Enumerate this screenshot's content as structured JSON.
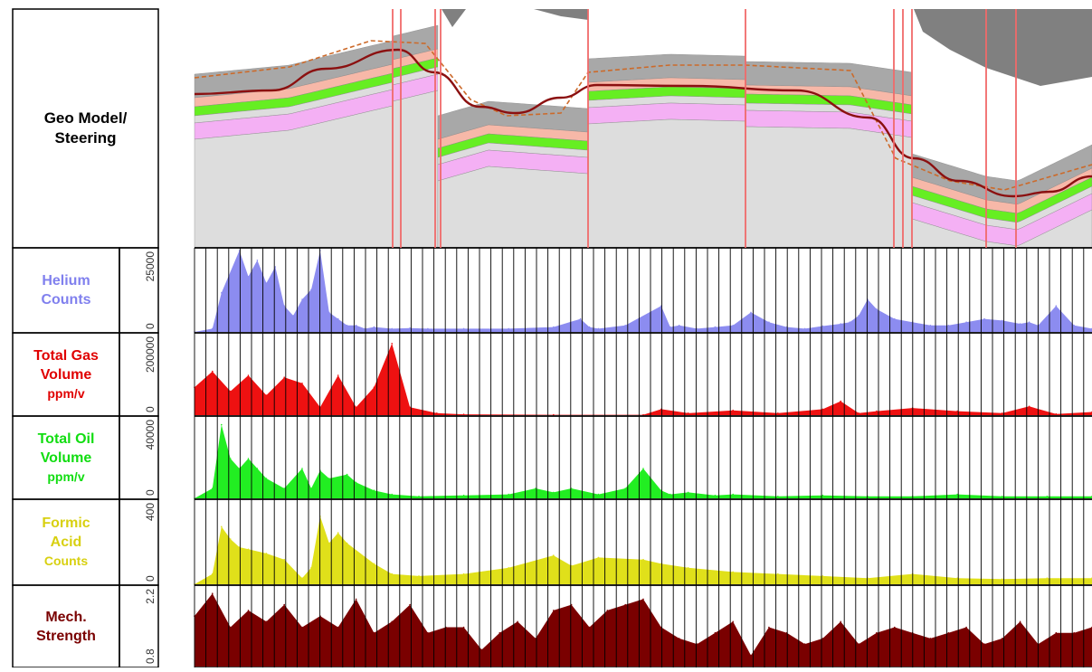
{
  "tracks": [
    {
      "id": "geo",
      "label_lines": [
        "Geo Model/",
        "Steering"
      ],
      "label_color": "#000000"
    },
    {
      "id": "helium",
      "label_lines": [
        "Helium",
        "Counts"
      ],
      "label_color": "#8080ee",
      "scale_max": "25000",
      "scale_min": "0",
      "fill": "#8c8cf0"
    },
    {
      "id": "gas",
      "label_lines": [
        "Total Gas",
        "Volume",
        "ppm/v"
      ],
      "label_color": "#e00000",
      "scale_max": "200000",
      "scale_min": "0",
      "fill": "#ee1111"
    },
    {
      "id": "oil",
      "label_lines": [
        "Total Oil",
        "Volume",
        "ppm/v"
      ],
      "label_color": "#11dd11",
      "scale_max": "40000",
      "scale_min": "0",
      "fill": "#22ee22"
    },
    {
      "id": "formic",
      "label_lines": [
        "Formic",
        "Acid",
        "Counts"
      ],
      "label_color": "#d8d010",
      "scale_max": "400",
      "scale_min": "0",
      "fill": "#e0e01a"
    },
    {
      "id": "mech",
      "label_lines": [
        "Mech.",
        "Strength"
      ],
      "label_color": "#7a0000",
      "scale_max": "2.2",
      "scale_min": "0.8",
      "fill": "#7a0000"
    }
  ],
  "colors": {
    "fault_line": "#f06a6a",
    "grid": "#000000",
    "layer_dark": "#a8a8a8",
    "layer_light": "#dddddd",
    "layer_pink": "#f4b0f4",
    "layer_green": "#66ee22",
    "layer_salmon": "#f7b8a8",
    "cap_dark": "#808080",
    "wellbore": "#8b1010",
    "plan": "#cc6a2a"
  },
  "chart_data": [
    {
      "type": "area",
      "title": "Helium Counts",
      "x": [
        0,
        0.02,
        0.03,
        0.05,
        0.06,
        0.07,
        0.08,
        0.09,
        0.1,
        0.11,
        0.12,
        0.13,
        0.14,
        0.15,
        0.16,
        0.17,
        0.18,
        0.19,
        0.2,
        0.22,
        0.24,
        0.26,
        0.3,
        0.35,
        0.4,
        0.43,
        0.44,
        0.45,
        0.48,
        0.52,
        0.53,
        0.54,
        0.56,
        0.58,
        0.6,
        0.62,
        0.64,
        0.66,
        0.68,
        0.7,
        0.72,
        0.73,
        0.74,
        0.75,
        0.76,
        0.78,
        0.8,
        0.82,
        0.84,
        0.86,
        0.88,
        0.9,
        0.92,
        0.93,
        0.94,
        0.96,
        0.98,
        1.0
      ],
      "y": [
        0,
        1000,
        12000,
        25000,
        17000,
        22000,
        15000,
        20000,
        8000,
        5000,
        10000,
        13000,
        25000,
        6000,
        4000,
        2000,
        2000,
        1000,
        1500,
        1000,
        1200,
        1000,
        1000,
        1000,
        1500,
        4000,
        1500,
        1000,
        2000,
        8000,
        1500,
        2000,
        1000,
        1500,
        2000,
        6000,
        3000,
        1500,
        1000,
        1800,
        2500,
        3000,
        5000,
        10000,
        7000,
        4000,
        3000,
        2000,
        2000,
        3000,
        4000,
        3500,
        2500,
        3000,
        2000,
        8000,
        2000,
        1000
      ],
      "ylim": [
        0,
        25000
      ]
    },
    {
      "type": "area",
      "title": "Total Gas Volume ppm/v",
      "x": [
        0,
        0.02,
        0.04,
        0.06,
        0.08,
        0.1,
        0.12,
        0.14,
        0.16,
        0.18,
        0.2,
        0.22,
        0.24,
        0.27,
        0.3,
        0.4,
        0.5,
        0.52,
        0.55,
        0.6,
        0.65,
        0.7,
        0.72,
        0.74,
        0.76,
        0.8,
        0.85,
        0.9,
        0.93,
        0.96,
        1.0
      ],
      "y": [
        70000,
        110000,
        60000,
        100000,
        50000,
        95000,
        80000,
        20000,
        100000,
        20000,
        70000,
        180000,
        20000,
        5000,
        2000,
        1000,
        1000,
        15000,
        5000,
        12000,
        5000,
        15000,
        35000,
        5000,
        10000,
        18000,
        10000,
        5000,
        22000,
        3000,
        8000
      ],
      "ylim": [
        0,
        200000
      ]
    },
    {
      "type": "area",
      "title": "Total Oil Volume ppm/v",
      "x": [
        0,
        0.02,
        0.03,
        0.04,
        0.05,
        0.06,
        0.07,
        0.08,
        0.1,
        0.12,
        0.13,
        0.14,
        0.15,
        0.17,
        0.18,
        0.2,
        0.22,
        0.25,
        0.3,
        0.35,
        0.38,
        0.4,
        0.42,
        0.45,
        0.48,
        0.5,
        0.52,
        0.53,
        0.55,
        0.58,
        0.6,
        0.65,
        0.7,
        0.75,
        0.8,
        0.85,
        0.9,
        0.95,
        1.0
      ],
      "y": [
        0,
        5000,
        37000,
        20000,
        15000,
        20000,
        15000,
        10000,
        5000,
        15000,
        5000,
        14000,
        10000,
        12000,
        8000,
        4000,
        2000,
        1000,
        1500,
        2000,
        5000,
        3000,
        5000,
        2000,
        5000,
        15000,
        4000,
        2000,
        3000,
        1500,
        2000,
        1000,
        1500,
        1000,
        1000,
        2000,
        1000,
        1000,
        1000
      ],
      "ylim": [
        0,
        40000
      ]
    },
    {
      "type": "area",
      "title": "Formic Acid Counts",
      "x": [
        0,
        0.02,
        0.03,
        0.04,
        0.05,
        0.06,
        0.08,
        0.1,
        0.12,
        0.13,
        0.14,
        0.15,
        0.16,
        0.17,
        0.2,
        0.22,
        0.25,
        0.3,
        0.35,
        0.4,
        0.42,
        0.45,
        0.5,
        0.52,
        0.55,
        0.6,
        0.65,
        0.7,
        0.75,
        0.8,
        0.85,
        0.9,
        0.95,
        1.0
      ],
      "y": [
        0,
        50,
        280,
        220,
        180,
        170,
        150,
        120,
        30,
        80,
        330,
        200,
        250,
        200,
        100,
        50,
        40,
        50,
        80,
        140,
        90,
        130,
        120,
        100,
        80,
        60,
        50,
        40,
        30,
        50,
        30,
        25,
        30,
        30
      ],
      "ylim": [
        0,
        400
      ]
    },
    {
      "type": "area",
      "title": "Mech. Strength",
      "x": [
        0,
        0.02,
        0.04,
        0.06,
        0.08,
        0.1,
        0.12,
        0.14,
        0.16,
        0.18,
        0.2,
        0.22,
        0.24,
        0.26,
        0.28,
        0.3,
        0.32,
        0.34,
        0.36,
        0.38,
        0.4,
        0.42,
        0.44,
        0.46,
        0.48,
        0.5,
        0.52,
        0.54,
        0.56,
        0.58,
        0.6,
        0.62,
        0.64,
        0.66,
        0.68,
        0.7,
        0.72,
        0.74,
        0.76,
        0.78,
        0.8,
        0.82,
        0.84,
        0.86,
        0.88,
        0.9,
        0.92,
        0.94,
        0.96,
        0.98,
        1.0
      ],
      "y": [
        1.7,
        2.1,
        1.5,
        1.8,
        1.6,
        1.9,
        1.5,
        1.7,
        1.5,
        2.0,
        1.4,
        1.6,
        1.9,
        1.4,
        1.5,
        1.5,
        1.1,
        1.4,
        1.6,
        1.3,
        1.8,
        1.9,
        1.5,
        1.8,
        1.9,
        2.0,
        1.5,
        1.3,
        1.2,
        1.4,
        1.6,
        1.0,
        1.5,
        1.4,
        1.2,
        1.3,
        1.6,
        1.2,
        1.4,
        1.5,
        1.4,
        1.3,
        1.4,
        1.5,
        1.2,
        1.3,
        1.6,
        1.2,
        1.4,
        1.4,
        1.5
      ],
      "ylim": [
        0.8,
        2.2
      ]
    }
  ]
}
